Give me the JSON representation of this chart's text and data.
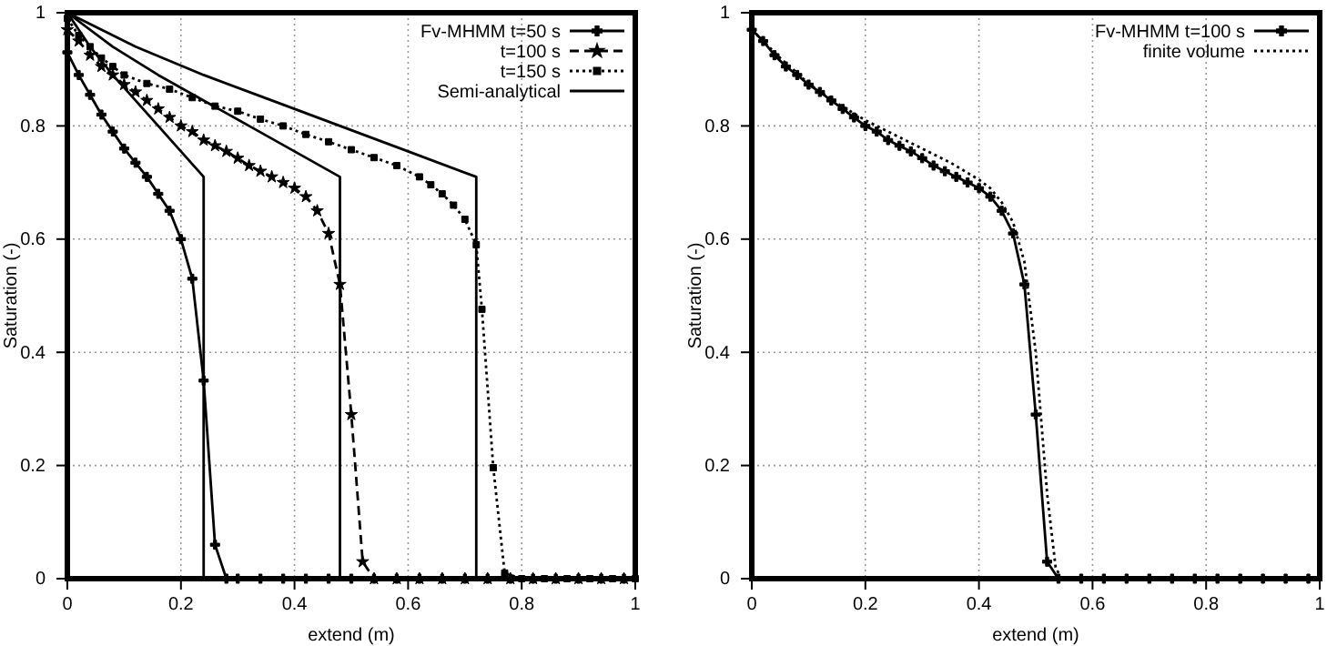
{
  "chart_data": [
    {
      "type": "line",
      "xlabel": "extend (m)",
      "ylabel": "Saturation (-)",
      "xlim": [
        0,
        1
      ],
      "ylim": [
        0,
        1
      ],
      "xticks": [
        0,
        0.2,
        0.4,
        0.6,
        0.8,
        1
      ],
      "yticks": [
        0,
        0.2,
        0.4,
        0.6,
        0.8,
        1
      ],
      "grid": true,
      "legend": "top right",
      "series": [
        {
          "name": "Fv-MHMM t=50 s",
          "color": "#000000",
          "marker": "cross",
          "line_style": "solid",
          "x": [
            0,
            0.02,
            0.04,
            0.06,
            0.08,
            0.1,
            0.12,
            0.14,
            0.16,
            0.18,
            0.2,
            0.22,
            0.24,
            0.26,
            0.28,
            0.3,
            0.34,
            0.38,
            0.42,
            0.46,
            0.5,
            0.54,
            0.58,
            0.62,
            0.66,
            0.7,
            0.74,
            0.78,
            0.82,
            0.86,
            0.9,
            0.94,
            0.98
          ],
          "values": [
            0.93,
            0.89,
            0.855,
            0.82,
            0.79,
            0.76,
            0.735,
            0.71,
            0.68,
            0.65,
            0.6,
            0.53,
            0.35,
            0.06,
            0,
            0,
            0,
            0,
            0,
            0,
            0,
            0,
            0,
            0,
            0,
            0,
            0,
            0,
            0,
            0,
            0,
            0,
            0
          ]
        },
        {
          "name": "t=100 s",
          "color": "#000000",
          "marker": "star",
          "line_style": "dashed",
          "x": [
            0,
            0.02,
            0.04,
            0.06,
            0.08,
            0.1,
            0.12,
            0.14,
            0.16,
            0.18,
            0.2,
            0.22,
            0.24,
            0.26,
            0.28,
            0.3,
            0.32,
            0.34,
            0.36,
            0.38,
            0.4,
            0.42,
            0.44,
            0.46,
            0.48,
            0.5,
            0.52,
            0.54,
            0.58,
            0.62,
            0.66,
            0.7,
            0.74,
            0.78,
            0.82,
            0.86,
            0.9,
            0.94,
            0.98
          ],
          "values": [
            0.97,
            0.95,
            0.925,
            0.905,
            0.89,
            0.873,
            0.86,
            0.845,
            0.83,
            0.815,
            0.8,
            0.79,
            0.775,
            0.765,
            0.755,
            0.743,
            0.73,
            0.72,
            0.71,
            0.7,
            0.69,
            0.675,
            0.65,
            0.61,
            0.52,
            0.29,
            0.03,
            0,
            0,
            0,
            0,
            0,
            0,
            0,
            0,
            0,
            0,
            0,
            0
          ]
        },
        {
          "name": "t=150 s",
          "color": "#000000",
          "marker": "square",
          "line_style": "dotted",
          "x": [
            0,
            0.02,
            0.04,
            0.06,
            0.08,
            0.1,
            0.14,
            0.18,
            0.22,
            0.26,
            0.3,
            0.34,
            0.38,
            0.42,
            0.46,
            0.5,
            0.54,
            0.58,
            0.62,
            0.64,
            0.66,
            0.68,
            0.7,
            0.72,
            0.73,
            0.75,
            0.77,
            0.8,
            0.84,
            0.88,
            0.92,
            0.96,
            1
          ],
          "values": [
            0.99,
            0.96,
            0.94,
            0.92,
            0.905,
            0.89,
            0.875,
            0.865,
            0.85,
            0.835,
            0.826,
            0.812,
            0.8,
            0.785,
            0.772,
            0.758,
            0.744,
            0.73,
            0.71,
            0.696,
            0.68,
            0.66,
            0.635,
            0.59,
            0.476,
            0.196,
            0.01,
            0,
            0,
            0,
            0,
            0,
            0
          ]
        },
        {
          "name": "Semi-analytical",
          "color": "#000000",
          "marker": "none",
          "line_style": "solid",
          "x": [
            0,
            0.04,
            0.08,
            0.12,
            0.16,
            0.2,
            0.24,
            0.24
          ],
          "values": [
            1,
            0.94,
            0.89,
            0.845,
            0.8,
            0.755,
            0.71,
            0
          ]
        },
        {
          "color": "#000000",
          "marker": "none",
          "line_style": "solid",
          "x": [
            0,
            0.08,
            0.16,
            0.24,
            0.32,
            0.4,
            0.48,
            0.48
          ],
          "values": [
            1,
            0.94,
            0.89,
            0.845,
            0.8,
            0.755,
            0.71,
            0
          ]
        },
        {
          "color": "#000000",
          "marker": "none",
          "line_style": "solid",
          "x": [
            0,
            0.12,
            0.24,
            0.36,
            0.48,
            0.6,
            0.72,
            0.72
          ],
          "values": [
            1,
            0.94,
            0.89,
            0.845,
            0.8,
            0.755,
            0.71,
            0
          ]
        }
      ]
    },
    {
      "type": "line",
      "xlabel": "extend (m)",
      "ylabel": "Saturation (-)",
      "xlim": [
        0,
        1
      ],
      "ylim": [
        0,
        1
      ],
      "xticks": [
        0,
        0.2,
        0.4,
        0.6,
        0.8,
        1
      ],
      "yticks": [
        0,
        0.2,
        0.4,
        0.6,
        0.8,
        1
      ],
      "grid": true,
      "legend": "top right",
      "series": [
        {
          "name": "Fv-MHMM t=100 s",
          "color": "#000000",
          "marker": "cross",
          "line_style": "solid",
          "x": [
            0,
            0.02,
            0.04,
            0.06,
            0.08,
            0.1,
            0.12,
            0.14,
            0.16,
            0.18,
            0.2,
            0.22,
            0.24,
            0.26,
            0.28,
            0.3,
            0.32,
            0.34,
            0.36,
            0.38,
            0.4,
            0.42,
            0.44,
            0.46,
            0.48,
            0.5,
            0.52,
            0.54,
            0.58,
            0.62,
            0.66,
            0.7,
            0.74,
            0.78,
            0.82,
            0.86,
            0.9,
            0.94,
            0.98
          ],
          "values": [
            0.97,
            0.95,
            0.925,
            0.905,
            0.89,
            0.873,
            0.86,
            0.845,
            0.83,
            0.815,
            0.8,
            0.79,
            0.775,
            0.765,
            0.755,
            0.743,
            0.73,
            0.72,
            0.71,
            0.7,
            0.69,
            0.675,
            0.65,
            0.61,
            0.52,
            0.29,
            0.03,
            0,
            0,
            0,
            0,
            0,
            0,
            0,
            0,
            0,
            0,
            0,
            0
          ]
        },
        {
          "name": "finite volume",
          "color": "#000000",
          "marker": "none",
          "line_style": "dotted",
          "x": [
            0,
            0.05,
            0.1,
            0.15,
            0.2,
            0.25,
            0.3,
            0.35,
            0.4,
            0.42,
            0.44,
            0.46,
            0.48,
            0.5,
            0.52,
            0.535,
            0.545,
            1
          ],
          "values": [
            0.97,
            0.92,
            0.875,
            0.84,
            0.81,
            0.785,
            0.76,
            0.735,
            0.705,
            0.69,
            0.665,
            0.63,
            0.56,
            0.4,
            0.15,
            0.02,
            0,
            0
          ]
        }
      ]
    }
  ]
}
